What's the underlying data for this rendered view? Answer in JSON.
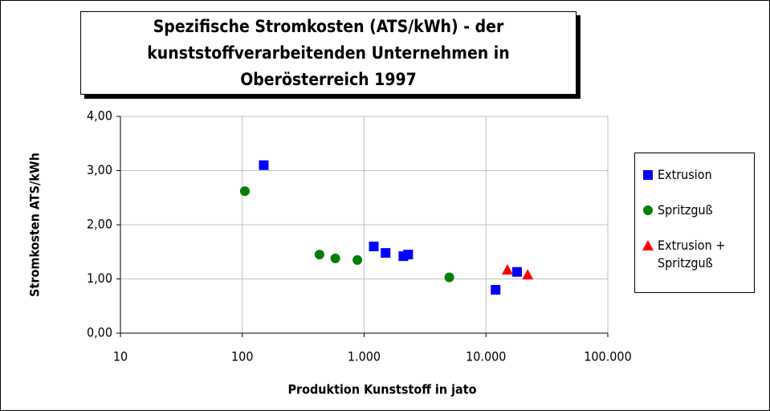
{
  "chart_data": {
    "type": "scatter",
    "title": "Spezifische Stromkosten (ATS/kWh) - der kunststoffverarbeitenden Unternehmen in Oberösterreich 1997",
    "x_label": "Produktion Kunststoff in jato",
    "y_label": "Stromkosten ATS/kWh",
    "xscale": "log",
    "xlim": [
      10,
      100000
    ],
    "xticks": [
      10,
      100,
      {
        "value": 1000,
        "label": "1.000"
      },
      {
        "value": 10000,
        "label": "10.000"
      },
      {
        "value": 100000,
        "label": "100.000"
      }
    ],
    "ylim": [
      0,
      4
    ],
    "yticks": [
      {
        "value": 0,
        "label": "0,00"
      },
      {
        "value": 1,
        "label": "1,00"
      },
      {
        "value": 2,
        "label": "2,00"
      },
      {
        "value": 3,
        "label": "3,00"
      },
      {
        "value": 4,
        "label": "4,00"
      }
    ],
    "grid": true,
    "legend": "right",
    "series": [
      {
        "name": "Extrusion",
        "color": "#0000ff",
        "marker": "square",
        "x": [
          150,
          1200,
          1500,
          2100,
          2300,
          12000,
          18000
        ],
        "values": [
          3.1,
          1.6,
          1.48,
          1.42,
          1.45,
          0.8,
          1.13
        ]
      },
      {
        "name": "Spritzguß",
        "color": "#008000",
        "marker": "circle",
        "x": [
          105,
          430,
          580,
          880,
          5000
        ],
        "values": [
          2.62,
          1.45,
          1.38,
          1.35,
          1.03
        ]
      },
      {
        "name": "Extrusion + Spritzguß",
        "color": "#ff0000",
        "marker": "triangle",
        "x": [
          15000,
          22000
        ],
        "values": [
          1.17,
          1.08
        ]
      }
    ]
  }
}
